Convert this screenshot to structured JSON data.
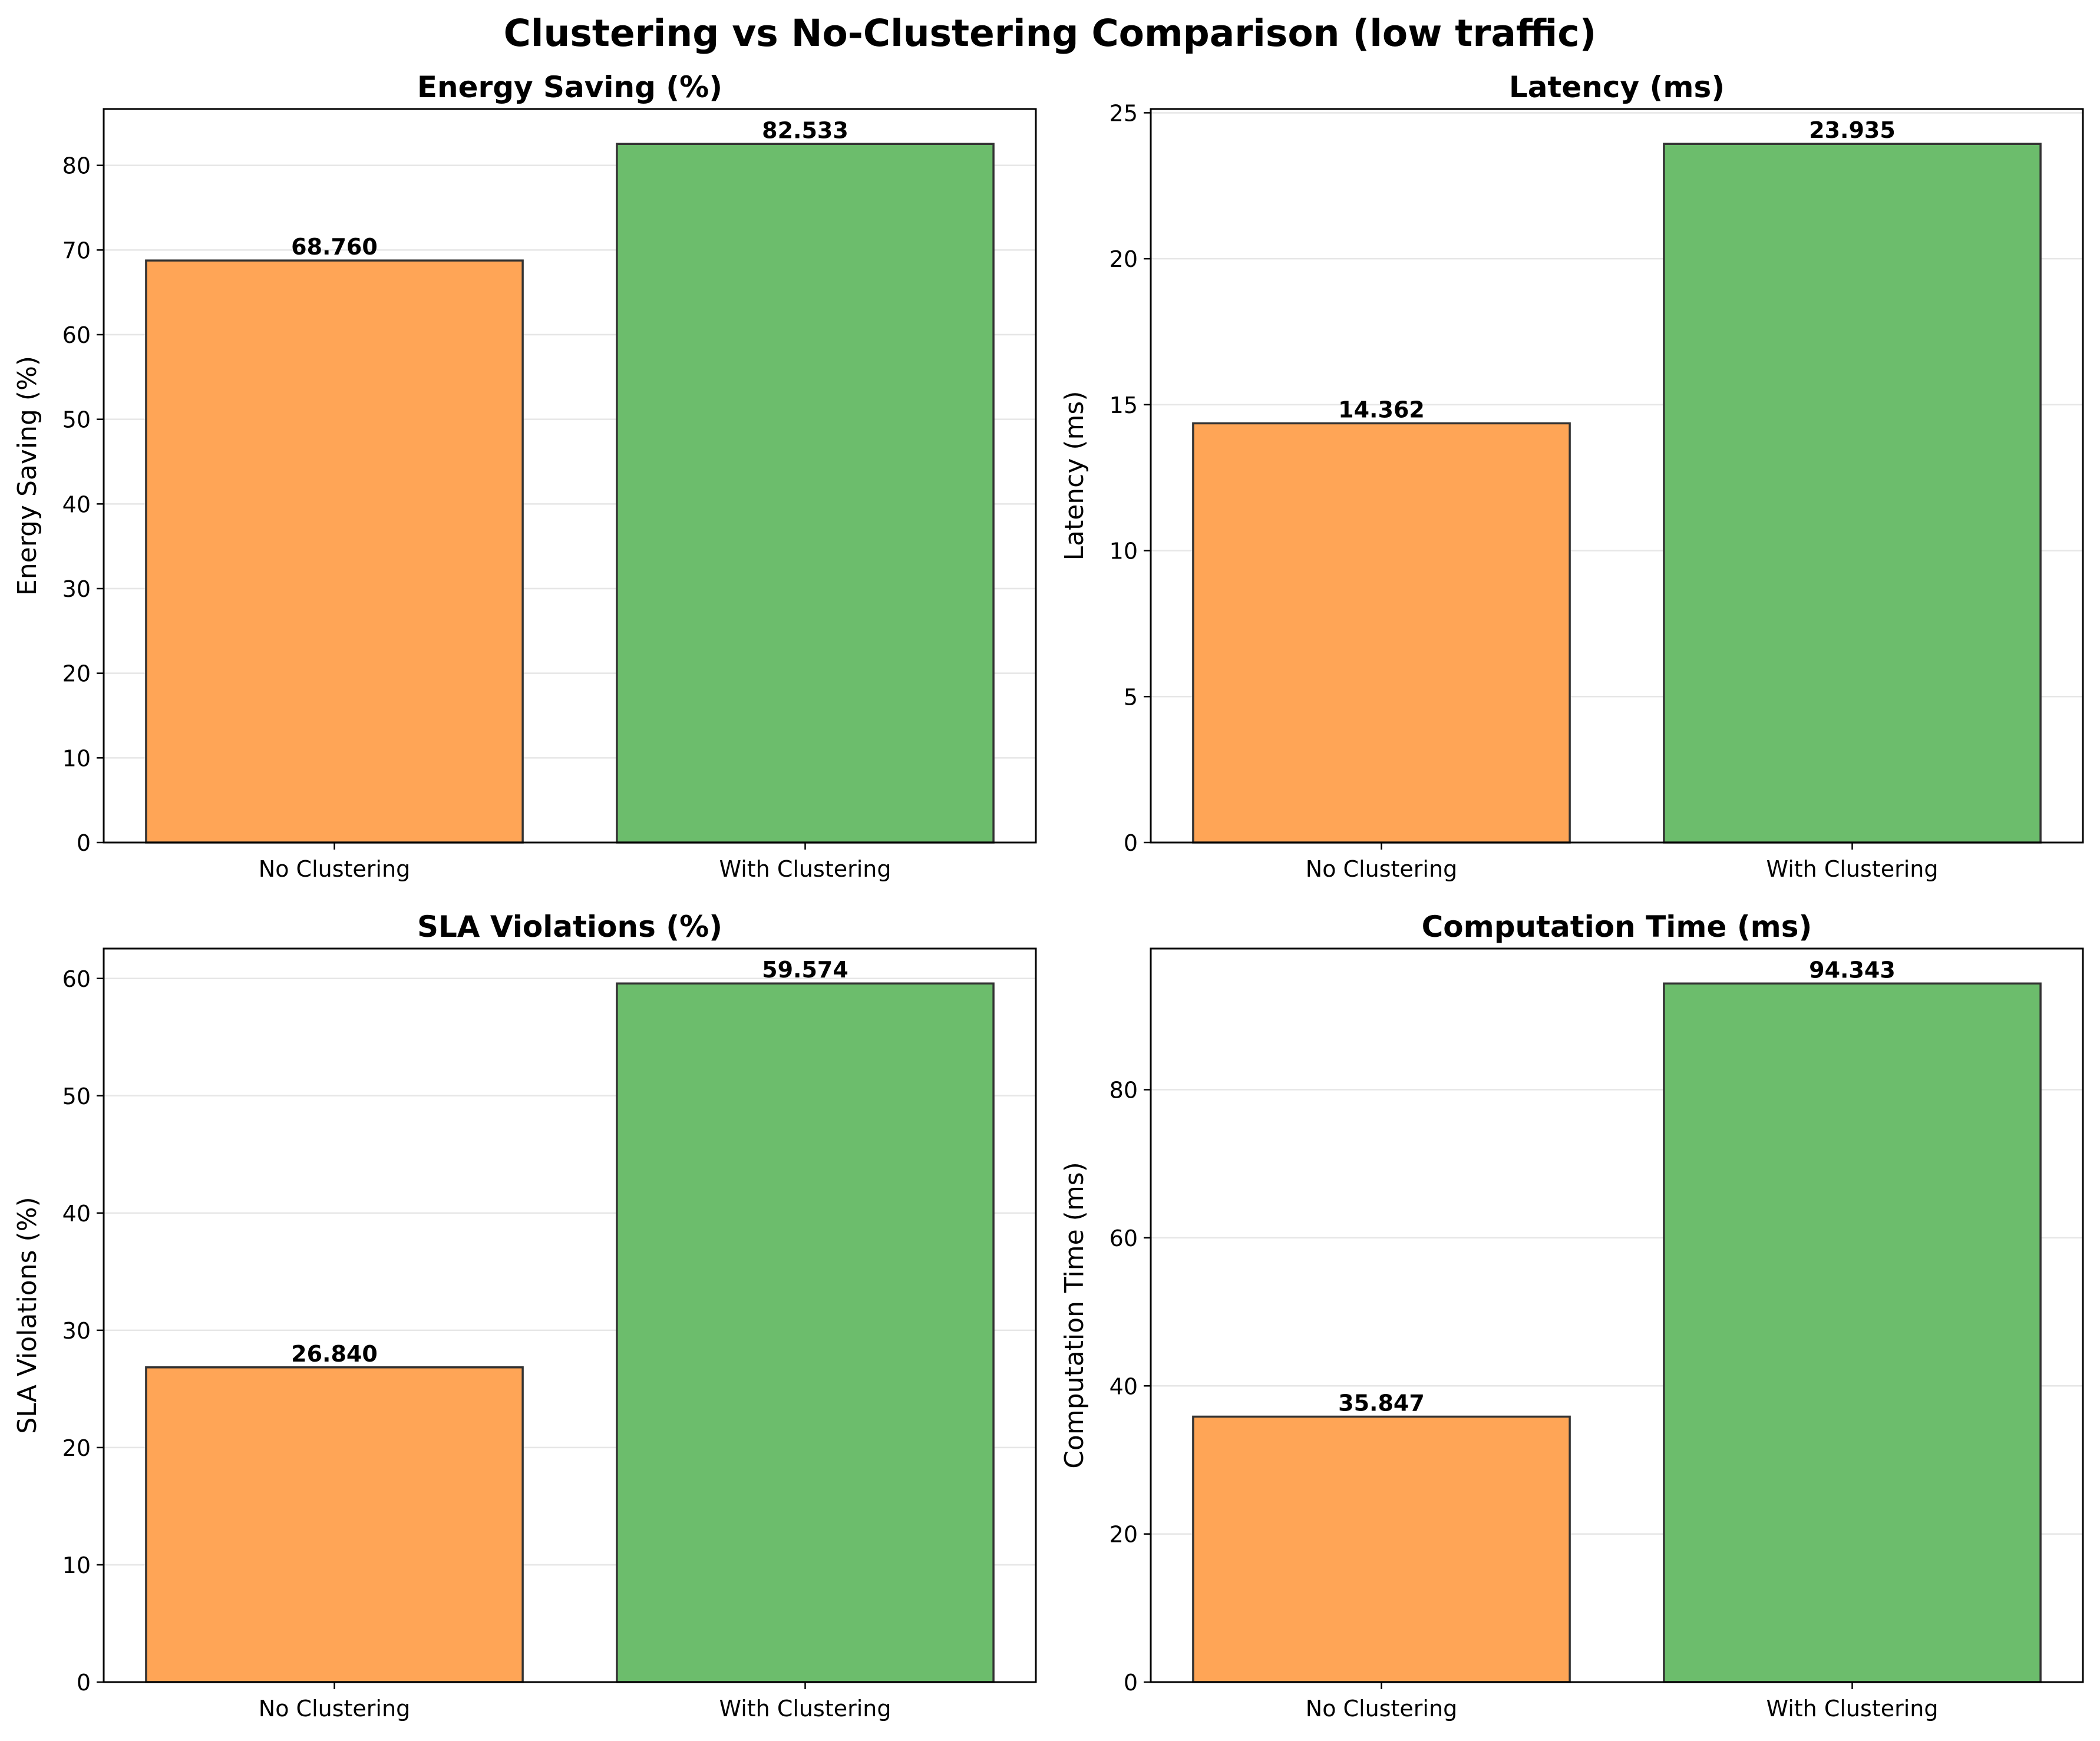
{
  "figure_title": "Clustering vs No-Clustering Comparison (low traffic)",
  "colors": {
    "no_clustering": "#ffa556",
    "with_clustering": "#6cbd6c",
    "bar_edge": "#333333",
    "grid": "#e6e6e6",
    "axis": "#000000"
  },
  "chart_data": [
    {
      "type": "bar",
      "title": "Energy Saving (%)",
      "xlabel": "",
      "ylabel": "Energy Saving (%)",
      "categories": [
        "No Clustering",
        "With Clustering"
      ],
      "values": [
        68.76,
        82.533
      ],
      "value_labels": [
        "68.760",
        "82.533"
      ],
      "ylim": [
        0,
        86.66
      ],
      "yticks": [
        0,
        10,
        20,
        30,
        40,
        50,
        60,
        70,
        80
      ],
      "grid": "y"
    },
    {
      "type": "bar",
      "title": "Latency (ms)",
      "xlabel": "",
      "ylabel": "Latency (ms)",
      "categories": [
        "No Clustering",
        "With Clustering"
      ],
      "values": [
        14.362,
        23.935
      ],
      "value_labels": [
        "14.362",
        "23.935"
      ],
      "ylim": [
        0,
        25.13
      ],
      "yticks": [
        0,
        5,
        10,
        15,
        20,
        25
      ],
      "grid": "y"
    },
    {
      "type": "bar",
      "title": "SLA Violations (%)",
      "xlabel": "",
      "ylabel": "SLA Violations (%)",
      "categories": [
        "No Clustering",
        "With Clustering"
      ],
      "values": [
        26.84,
        59.574
      ],
      "value_labels": [
        "26.840",
        "59.574"
      ],
      "ylim": [
        0,
        62.55
      ],
      "yticks": [
        0,
        10,
        20,
        30,
        40,
        50,
        60
      ],
      "grid": "y"
    },
    {
      "type": "bar",
      "title": "Computation Time (ms)",
      "xlabel": "",
      "ylabel": "Computation Time (ms)",
      "categories": [
        "No Clustering",
        "With Clustering"
      ],
      "values": [
        35.847,
        94.343
      ],
      "value_labels": [
        "35.847",
        "94.343"
      ],
      "ylim": [
        0,
        99.06
      ],
      "yticks": [
        0,
        20,
        40,
        60,
        80
      ],
      "grid": "y"
    }
  ]
}
